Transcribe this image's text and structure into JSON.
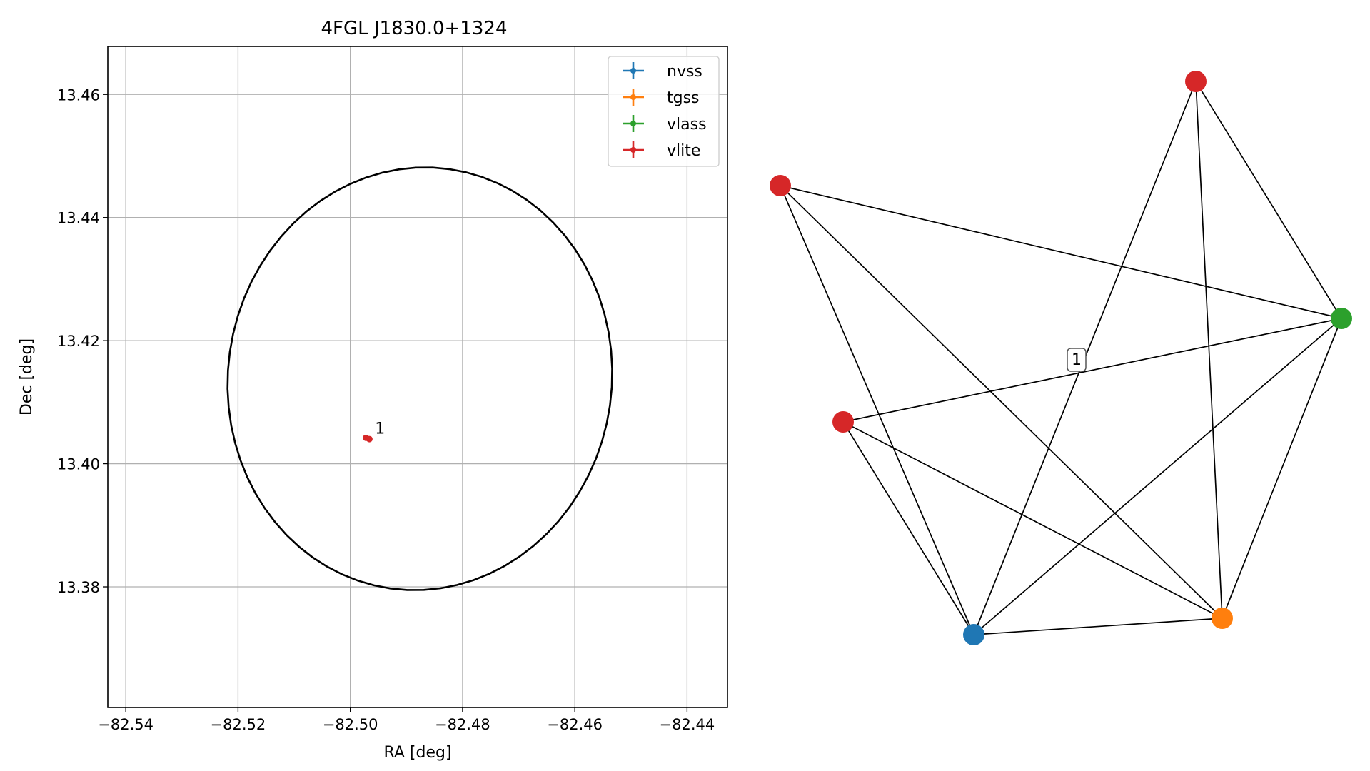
{
  "chart_data": [
    {
      "type": "scatter",
      "title": "4FGL J1830.0+1324",
      "xlabel": "RA [deg]",
      "ylabel": "Dec [deg]",
      "xlim": [
        -82.5432,
        -82.4328
      ],
      "ylim": [
        13.3604,
        13.4678
      ],
      "xticks": [
        -82.54,
        -82.52,
        -82.5,
        -82.48,
        -82.46,
        -82.44
      ],
      "xtick_labels": [
        "−82.54",
        "−82.52",
        "−82.50",
        "−82.48",
        "−82.46",
        "−82.44"
      ],
      "yticks": [
        13.38,
        13.4,
        13.42,
        13.44,
        13.46
      ],
      "ytick_labels": [
        "13.38",
        "13.40",
        "13.42",
        "13.44",
        "13.46"
      ],
      "grid": true,
      "legend_position": "top-right",
      "legend": [
        {
          "label": "nvss",
          "color": "#1f77b4"
        },
        {
          "label": "tgss",
          "color": "#ff7f0e"
        },
        {
          "label": "vlass",
          "color": "#2ca02c"
        },
        {
          "label": "vlite",
          "color": "#d62728"
        }
      ],
      "ellipse": {
        "center": [
          -82.4876,
          13.4138
        ],
        "ra_semi_axis": 0.0342,
        "dec_semi_axis": 0.0344,
        "color": "#000000"
      },
      "points": [
        {
          "survey": "vlite",
          "ra": -82.4972,
          "dec": 13.4042,
          "color": "#d62728"
        },
        {
          "survey": "vlite",
          "ra": -82.4966,
          "dec": 13.404,
          "color": "#d62728"
        }
      ],
      "annotations": [
        {
          "text": "1",
          "ra": -82.4956,
          "dec": 13.4049
        }
      ]
    },
    {
      "type": "graph",
      "edge_label": "1",
      "nodes": [
        {
          "id": "vlite_top",
          "survey": "vlite",
          "color": "#d62728"
        },
        {
          "id": "vlite_left",
          "survey": "vlite",
          "color": "#d62728"
        },
        {
          "id": "vlite_mid",
          "survey": "vlite",
          "color": "#d62728"
        },
        {
          "id": "vlass",
          "survey": "vlass",
          "color": "#2ca02c"
        },
        {
          "id": "nvss",
          "survey": "nvss",
          "color": "#1f77b4"
        },
        {
          "id": "tgss",
          "survey": "tgss",
          "color": "#ff7f0e"
        }
      ],
      "edges": [
        [
          "vlite_top",
          "vlass"
        ],
        [
          "vlite_top",
          "nvss"
        ],
        [
          "vlite_top",
          "tgss"
        ],
        [
          "vlite_left",
          "vlass"
        ],
        [
          "vlite_left",
          "nvss"
        ],
        [
          "vlite_left",
          "tgss"
        ],
        [
          "vlite_mid",
          "vlass"
        ],
        [
          "vlite_mid",
          "nvss"
        ],
        [
          "vlite_mid",
          "tgss"
        ],
        [
          "vlass",
          "nvss"
        ],
        [
          "vlass",
          "tgss"
        ],
        [
          "nvss",
          "tgss"
        ]
      ]
    }
  ]
}
